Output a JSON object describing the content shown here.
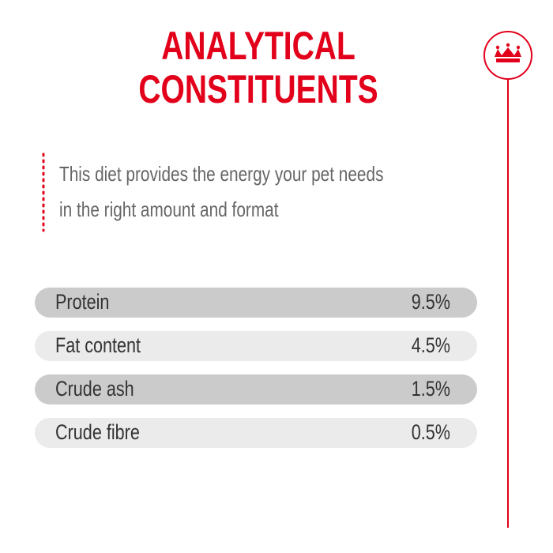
{
  "header": {
    "title_lines": [
      "ANALYTICAL",
      "CONSTITUENTS"
    ]
  },
  "description": {
    "lines": [
      "This diet provides the energy your pet needs",
      "in the right amount and format"
    ]
  },
  "table": {
    "rows": [
      [
        "Protein",
        "9.5%"
      ],
      [
        "Fat content",
        "4.5%"
      ],
      [
        "Crude ash",
        "1.5%"
      ],
      [
        "Crude fibre",
        "0.5%"
      ]
    ]
  }
}
